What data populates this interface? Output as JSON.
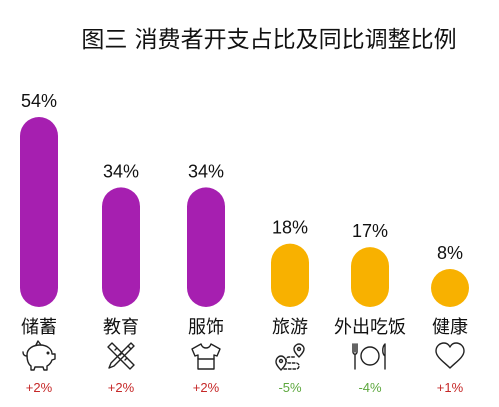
{
  "chart_data": {
    "type": "bar",
    "title": "图三 消费者开支占比及同比调整比例",
    "ylim": [
      0,
      54
    ],
    "categories": [
      "储蓄",
      "教育",
      "服饰",
      "旅游",
      "外出吃饭",
      "健康"
    ],
    "values": [
      54,
      34,
      34,
      18,
      17,
      8
    ],
    "value_labels": [
      "54%",
      "34%",
      "34%",
      "18%",
      "17%",
      "8%"
    ],
    "yoy_change": [
      2,
      2,
      2,
      -5,
      -4,
      1
    ],
    "yoy_change_labels": [
      "+2%",
      "+2%",
      "+2%",
      "-5%",
      "-4%",
      "+1%"
    ],
    "bar_colors": [
      "#A61FB0",
      "#A61FB0",
      "#A61FB0",
      "#F8B100",
      "#F8B100",
      "#F8B100"
    ],
    "change_colors": [
      "#C62828",
      "#C62828",
      "#C62828",
      "#5DA83E",
      "#5DA83E",
      "#C62828"
    ],
    "icons": [
      "piggy-bank-icon",
      "pencil-ruler-icon",
      "tshirt-icon",
      "route-pin-icon",
      "fork-plate-knife-icon",
      "heart-icon"
    ],
    "grid": false,
    "legend": "none"
  }
}
